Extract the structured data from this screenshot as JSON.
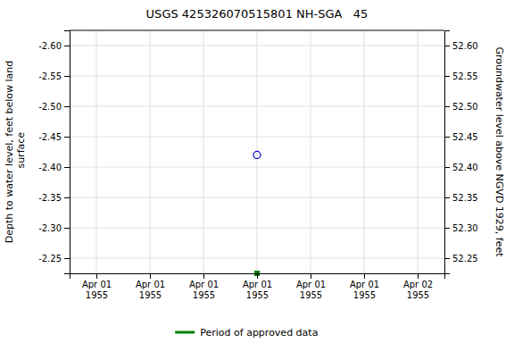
{
  "chart_data": {
    "type": "scatter",
    "title": "USGS 425326070515801 NH-SGA   45",
    "ylabel": "Depth to water level, feet below land\n surface",
    "y2label": "Groundwater level above NGVD 1929, feet",
    "categories": [
      "Apr 01\n1955",
      "Apr 01\n1955",
      "Apr 01\n1955",
      "Apr 01\n1955",
      "Apr 01\n1955",
      "Apr 01\n1955",
      "Apr 02\n1955"
    ],
    "series": [
      {
        "color": "#0000cc",
        "marker": "circle",
        "values": [
          null,
          null,
          null,
          -2.42,
          null,
          null,
          null
        ]
      },
      {
        "name": "Period of approved data",
        "color": "#008000",
        "marker": "square",
        "values": [
          null,
          null,
          null,
          -2.225,
          null,
          null,
          null
        ]
      }
    ],
    "ylim": [
      -2.225,
      -2.625
    ],
    "yticks": [
      {
        "value": -2.6,
        "label": "-2.60"
      },
      -2.55,
      {
        "value": -2.5,
        "label": "-2.50"
      },
      -2.45,
      {
        "value": -2.4,
        "label": "-2.40"
      },
      -2.35,
      {
        "value": -2.3,
        "label": "-2.30"
      },
      -2.25
    ],
    "y2lim": [
      52.225,
      52.625
    ],
    "y2ticks": [
      {
        "value": 52.6,
        "label": "52.60"
      },
      52.55,
      {
        "value": 52.5,
        "label": "52.50"
      },
      52.45,
      {
        "value": 52.4,
        "label": "52.40"
      },
      52.35,
      {
        "value": 52.3,
        "label": "52.30"
      },
      52.25
    ],
    "grid": true,
    "legend": "bottom"
  }
}
